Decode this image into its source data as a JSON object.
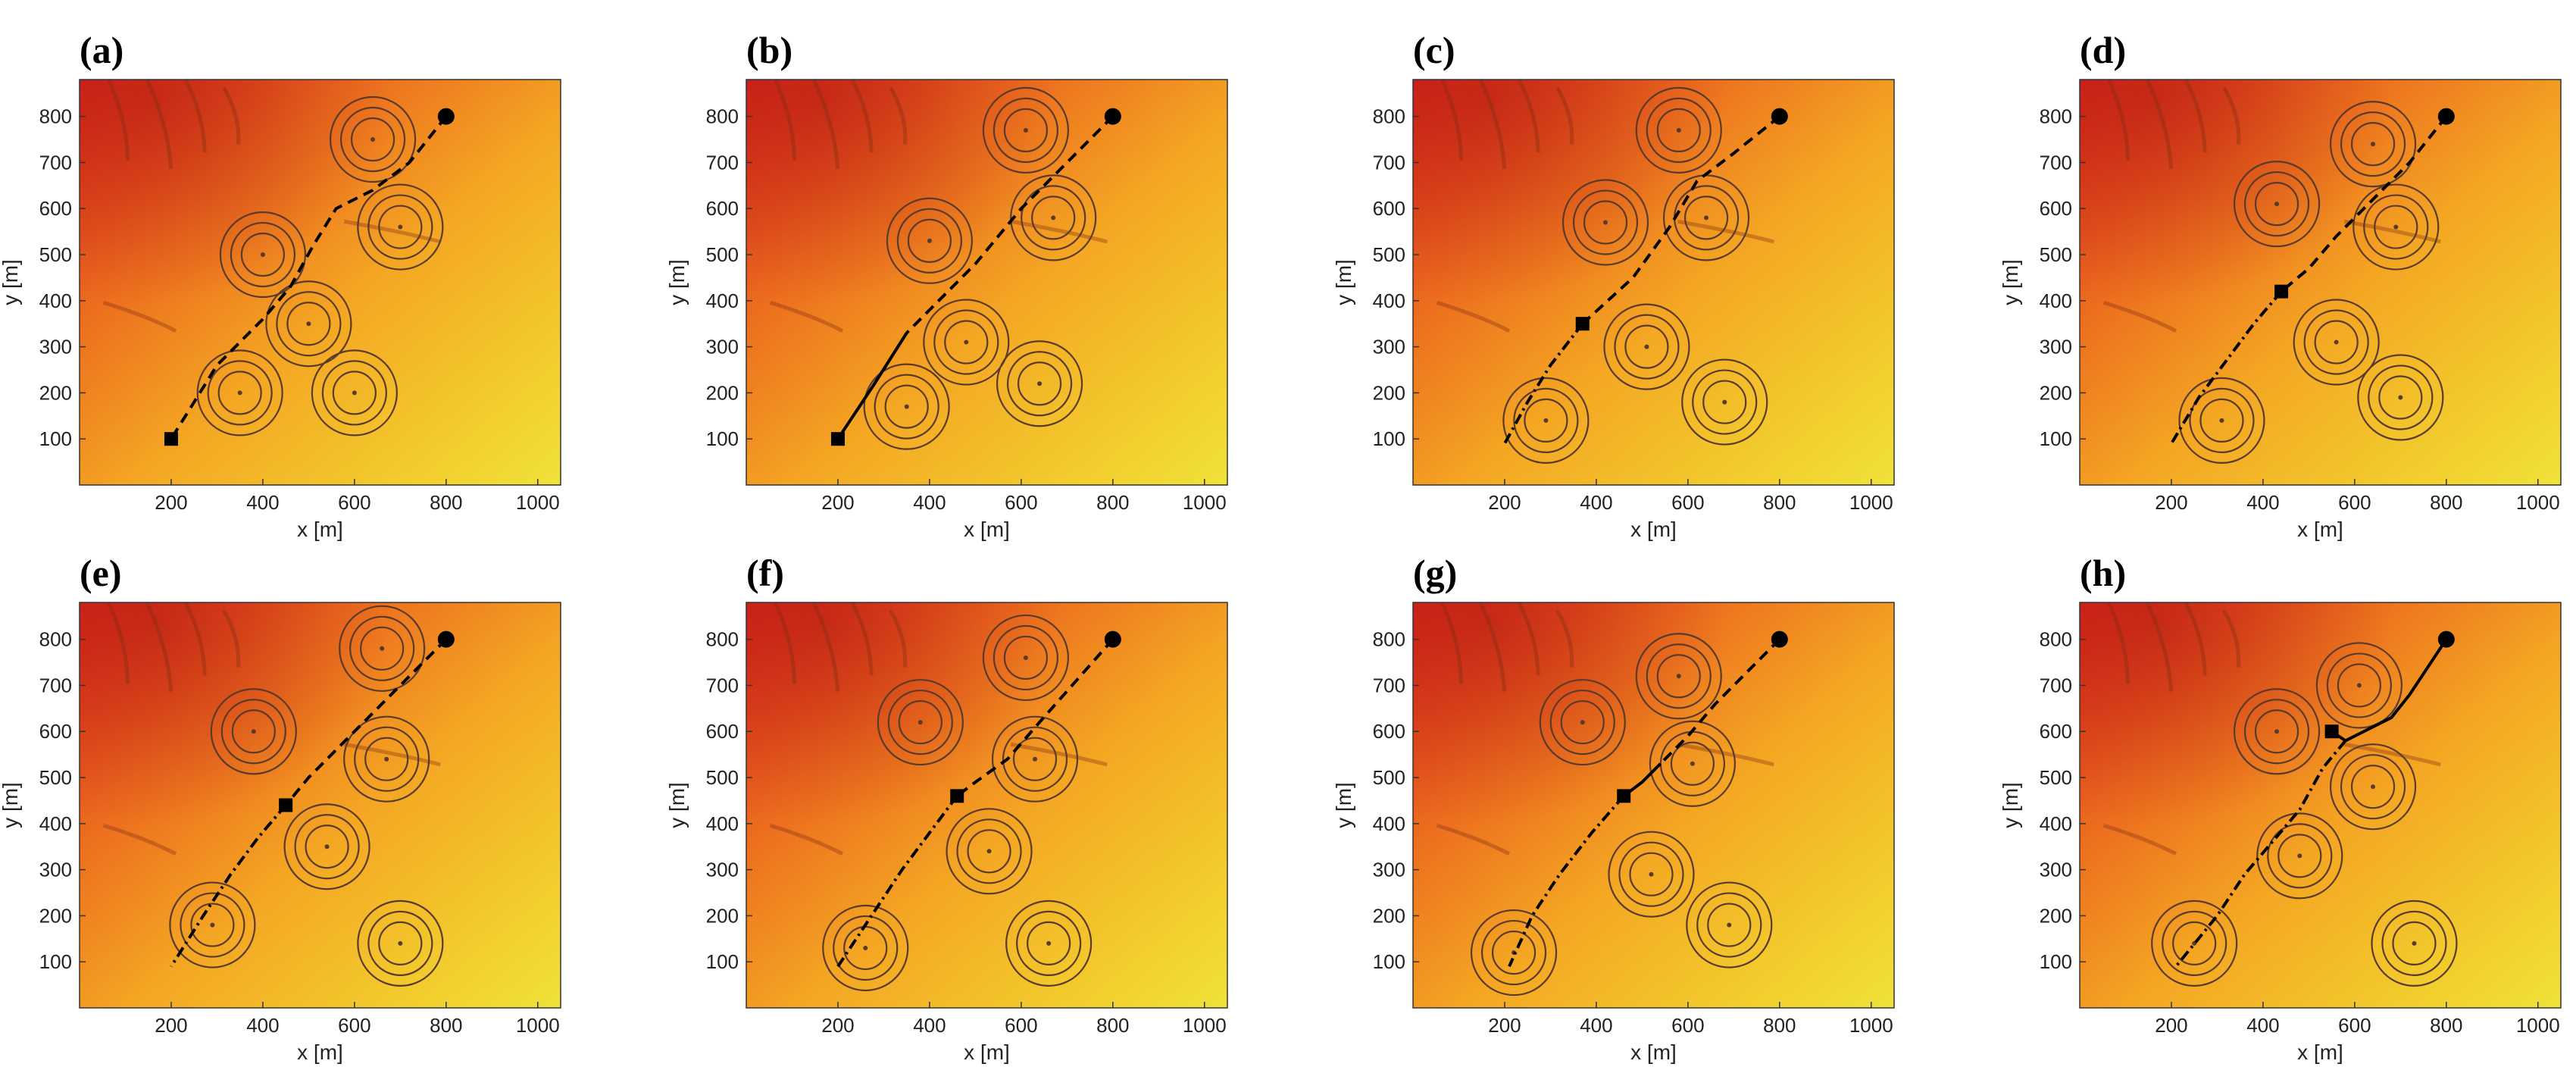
{
  "figure": {
    "panel_labels": [
      "(a)",
      "(b)",
      "(c)",
      "(d)",
      "(e)",
      "(f)",
      "(g)",
      "(h)"
    ]
  },
  "colors": {
    "terrain_low": "#f0e23a",
    "terrain_mid": "#f4a623",
    "terrain_high": "#d9261c",
    "path": "#000000",
    "threat_rings": "#5a3a2a"
  },
  "chart_data": [
    {
      "panel": "(a)",
      "type": "scatter",
      "xlabel": "x [m]",
      "ylabel": "y [m]",
      "xlim": [
        0,
        1050
      ],
      "ylim": [
        0,
        880
      ],
      "xticks": [
        200,
        400,
        600,
        800,
        1000
      ],
      "yticks": [
        100,
        200,
        300,
        400,
        500,
        600,
        700,
        800
      ],
      "start": [
        800,
        800
      ],
      "current": [
        200,
        100
      ],
      "threats": [
        [
          640,
          750
        ],
        [
          700,
          560
        ],
        [
          400,
          500
        ],
        [
          500,
          350
        ],
        [
          350,
          200
        ],
        [
          600,
          200
        ]
      ],
      "planned_path": [
        [
          800,
          800
        ],
        [
          720,
          700
        ],
        [
          640,
          640
        ],
        [
          560,
          600
        ],
        [
          510,
          520
        ],
        [
          460,
          430
        ],
        [
          400,
          360
        ],
        [
          300,
          260
        ],
        [
          200,
          100
        ]
      ],
      "flown_path": [],
      "flown_dashdot": []
    },
    {
      "panel": "(b)",
      "type": "scatter",
      "xlabel": "x [m]",
      "ylabel": "y [m]",
      "xlim": [
        0,
        1050
      ],
      "ylim": [
        0,
        880
      ],
      "xticks": [
        200,
        400,
        600,
        800,
        1000
      ],
      "yticks": [
        100,
        200,
        300,
        400,
        500,
        600,
        700,
        800
      ],
      "start": [
        800,
        800
      ],
      "current": [
        200,
        100
      ],
      "threats": [
        [
          610,
          770
        ],
        [
          670,
          580
        ],
        [
          400,
          530
        ],
        [
          480,
          310
        ],
        [
          350,
          170
        ],
        [
          640,
          220
        ]
      ],
      "planned_path": [
        [
          800,
          800
        ],
        [
          700,
          700
        ],
        [
          600,
          600
        ],
        [
          500,
          480
        ],
        [
          420,
          400
        ],
        [
          350,
          330
        ]
      ],
      "flown_path": [
        [
          350,
          330
        ],
        [
          280,
          220
        ],
        [
          200,
          100
        ]
      ],
      "flown_dashdot": []
    },
    {
      "panel": "(c)",
      "type": "scatter",
      "xlabel": "x [m]",
      "ylabel": "y [m]",
      "xlim": [
        0,
        1050
      ],
      "ylim": [
        0,
        880
      ],
      "xticks": [
        200,
        400,
        600,
        800,
        1000
      ],
      "yticks": [
        100,
        200,
        300,
        400,
        500,
        600,
        700,
        800
      ],
      "start": [
        800,
        800
      ],
      "current": [
        370,
        350
      ],
      "threats": [
        [
          580,
          770
        ],
        [
          640,
          580
        ],
        [
          420,
          570
        ],
        [
          510,
          300
        ],
        [
          290,
          140
        ],
        [
          680,
          180
        ]
      ],
      "planned_path": [
        [
          800,
          800
        ],
        [
          700,
          720
        ],
        [
          620,
          660
        ],
        [
          560,
          560
        ],
        [
          480,
          450
        ],
        [
          370,
          350
        ]
      ],
      "flown_path": [],
      "flown_dashdot": [
        [
          370,
          350
        ],
        [
          300,
          260
        ],
        [
          250,
          180
        ],
        [
          200,
          90
        ]
      ]
    },
    {
      "panel": "(d)",
      "type": "scatter",
      "xlabel": "x [m]",
      "ylabel": "y [m]",
      "xlim": [
        0,
        1050
      ],
      "ylim": [
        0,
        880
      ],
      "xticks": [
        200,
        400,
        600,
        800,
        1000
      ],
      "yticks": [
        100,
        200,
        300,
        400,
        500,
        600,
        700,
        800
      ],
      "start": [
        800,
        800
      ],
      "current": [
        440,
        420
      ],
      "threats": [
        [
          640,
          740
        ],
        [
          690,
          560
        ],
        [
          430,
          610
        ],
        [
          560,
          310
        ],
        [
          310,
          140
        ],
        [
          700,
          190
        ]
      ],
      "planned_path": [
        [
          800,
          800
        ],
        [
          720,
          700
        ],
        [
          640,
          620
        ],
        [
          560,
          540
        ],
        [
          500,
          470
        ],
        [
          440,
          420
        ]
      ],
      "flown_path": [],
      "flown_dashdot": [
        [
          440,
          420
        ],
        [
          380,
          350
        ],
        [
          320,
          270
        ],
        [
          260,
          190
        ],
        [
          200,
          90
        ]
      ]
    },
    {
      "panel": "(e)",
      "type": "scatter",
      "xlabel": "x [m]",
      "ylabel": "y [m]",
      "xlim": [
        0,
        1050
      ],
      "ylim": [
        0,
        880
      ],
      "xticks": [
        200,
        400,
        600,
        800,
        1000
      ],
      "yticks": [
        100,
        200,
        300,
        400,
        500,
        600,
        700,
        800
      ],
      "start": [
        800,
        800
      ],
      "current": [
        450,
        440
      ],
      "threats": [
        [
          660,
          780
        ],
        [
          670,
          540
        ],
        [
          380,
          600
        ],
        [
          540,
          350
        ],
        [
          290,
          180
        ],
        [
          700,
          140
        ]
      ],
      "planned_path": [
        [
          800,
          800
        ],
        [
          720,
          720
        ],
        [
          640,
          640
        ],
        [
          560,
          560
        ],
        [
          500,
          500
        ],
        [
          450,
          440
        ]
      ],
      "flown_path": [],
      "flown_dashdot": [
        [
          450,
          440
        ],
        [
          390,
          370
        ],
        [
          330,
          290
        ],
        [
          270,
          200
        ],
        [
          200,
          90
        ]
      ]
    },
    {
      "panel": "(f)",
      "type": "scatter",
      "xlabel": "x [m]",
      "ylabel": "y [m]",
      "xlim": [
        0,
        1050
      ],
      "ylim": [
        0,
        880
      ],
      "xticks": [
        200,
        400,
        600,
        800,
        1000
      ],
      "yticks": [
        100,
        200,
        300,
        400,
        500,
        600,
        700,
        800
      ],
      "start": [
        800,
        800
      ],
      "current": [
        460,
        460
      ],
      "threats": [
        [
          610,
          760
        ],
        [
          630,
          540
        ],
        [
          380,
          620
        ],
        [
          530,
          340
        ],
        [
          260,
          130
        ],
        [
          660,
          140
        ]
      ],
      "planned_path": [
        [
          800,
          800
        ],
        [
          720,
          710
        ],
        [
          640,
          620
        ],
        [
          570,
          540
        ],
        [
          500,
          490
        ],
        [
          460,
          460
        ]
      ],
      "flown_path": [],
      "flown_dashdot": [
        [
          460,
          460
        ],
        [
          400,
          380
        ],
        [
          340,
          300
        ],
        [
          280,
          210
        ],
        [
          200,
          90
        ]
      ]
    },
    {
      "panel": "(g)",
      "type": "scatter",
      "xlabel": "x [m]",
      "ylabel": "y [m]",
      "xlim": [
        0,
        1050
      ],
      "ylim": [
        0,
        880
      ],
      "xticks": [
        200,
        400,
        600,
        800,
        1000
      ],
      "yticks": [
        100,
        200,
        300,
        400,
        500,
        600,
        700,
        800
      ],
      "start": [
        800,
        800
      ],
      "current": [
        460,
        460
      ],
      "threats": [
        [
          580,
          720
        ],
        [
          610,
          530
        ],
        [
          370,
          620
        ],
        [
          520,
          290
        ],
        [
          220,
          120
        ],
        [
          690,
          180
        ]
      ],
      "planned_path": [
        [
          800,
          800
        ],
        [
          730,
          730
        ],
        [
          660,
          660
        ],
        [
          600,
          590
        ],
        [
          540,
          530
        ]
      ],
      "flown_path": [
        [
          540,
          530
        ],
        [
          500,
          490
        ],
        [
          460,
          460
        ]
      ],
      "flown_dashdot": [
        [
          460,
          460
        ],
        [
          390,
          380
        ],
        [
          320,
          290
        ],
        [
          260,
          200
        ],
        [
          210,
          90
        ]
      ]
    },
    {
      "panel": "(h)",
      "type": "scatter",
      "xlabel": "x [m]",
      "ylabel": "y [m]",
      "xlim": [
        0,
        1050
      ],
      "ylim": [
        0,
        880
      ],
      "xticks": [
        200,
        400,
        600,
        800,
        1000
      ],
      "yticks": [
        100,
        200,
        300,
        400,
        500,
        600,
        700,
        800
      ],
      "start": [
        800,
        800
      ],
      "current": [
        550,
        600
      ],
      "threats": [
        [
          610,
          700
        ],
        [
          640,
          480
        ],
        [
          430,
          600
        ],
        [
          480,
          330
        ],
        [
          250,
          140
        ],
        [
          730,
          140
        ]
      ],
      "planned_path": [],
      "flown_path": [
        [
          800,
          800
        ],
        [
          760,
          740
        ],
        [
          720,
          680
        ],
        [
          680,
          630
        ],
        [
          620,
          600
        ],
        [
          580,
          580
        ],
        [
          550,
          600
        ]
      ],
      "flown_dashdot": [
        [
          580,
          580
        ],
        [
          530,
          520
        ],
        [
          480,
          430
        ],
        [
          420,
          360
        ],
        [
          360,
          290
        ],
        [
          300,
          200
        ],
        [
          210,
          90
        ]
      ]
    }
  ]
}
